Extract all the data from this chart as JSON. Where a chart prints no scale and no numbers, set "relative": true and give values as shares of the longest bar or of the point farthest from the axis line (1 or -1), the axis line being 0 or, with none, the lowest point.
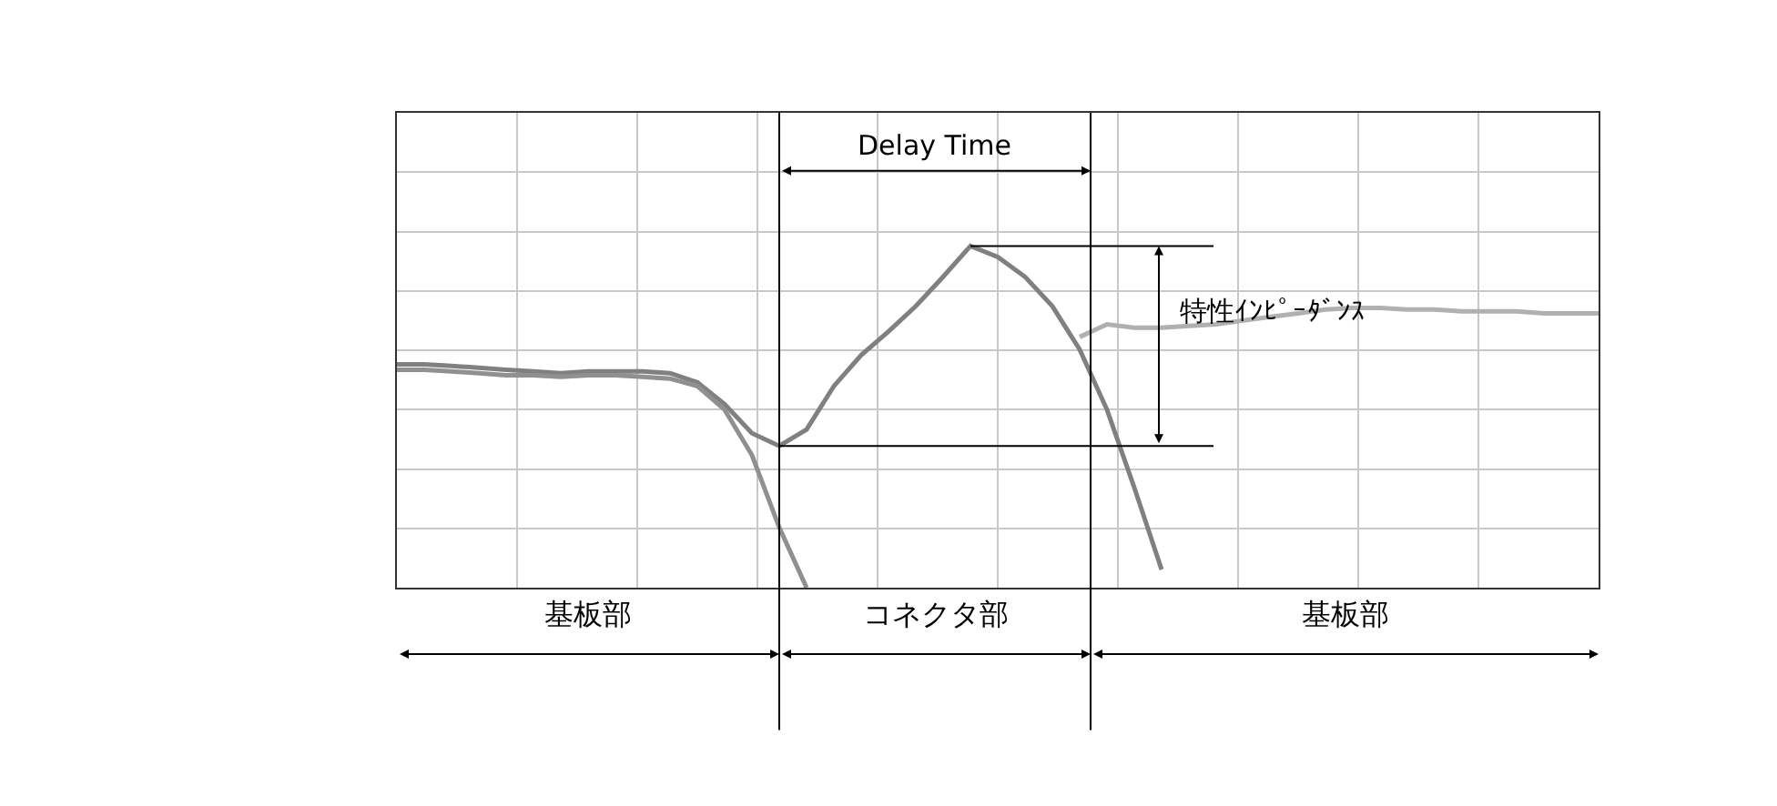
{
  "chart_data": {
    "type": "line",
    "relative": true,
    "grid": true,
    "tick_labels": false,
    "line_style": "solid",
    "marker": "none",
    "categories": [
      null,
      null,
      null,
      null,
      null,
      null,
      null,
      null,
      null,
      null,
      null,
      null,
      null,
      null,
      null,
      null,
      null,
      null,
      null,
      null,
      null,
      null,
      null,
      null,
      null,
      null,
      null,
      null,
      null,
      null,
      null,
      null,
      null,
      null,
      null,
      null,
      null,
      null,
      null,
      null,
      null,
      null,
      null,
      null,
      null
    ],
    "series": [
      {
        "color": "#808080",
        "values": [
          0.654,
          0.654,
          0.649,
          0.644,
          0.638,
          0.633,
          0.628,
          0.633,
          0.633,
          0.633,
          0.628,
          0.601,
          0.537,
          0.452,
          0.415,
          0.463,
          0.59,
          0.681,
          0.75,
          0.824,
          0.91,
          1.0,
          0.968,
          0.91,
          0.824,
          0.697,
          0.521,
          0.293,
          0.053,
          null,
          null,
          null,
          null,
          null,
          null,
          null,
          null,
          null,
          null,
          null,
          null,
          null,
          null,
          null,
          null
        ]
      },
      {
        "color": "#909090",
        "values": [
          0.638,
          0.638,
          0.633,
          0.628,
          0.622,
          0.622,
          0.617,
          0.622,
          0.622,
          0.617,
          0.612,
          0.59,
          0.521,
          0.388,
          0.176,
          0,
          null,
          null,
          null,
          null,
          null,
          null,
          null,
          null,
          null,
          null,
          null,
          null,
          null,
          null,
          null,
          null,
          null,
          null,
          null,
          null,
          null,
          null,
          null,
          null,
          null,
          null,
          null,
          null,
          null
        ]
      },
      {
        "color": "#b0b0b0",
        "values": [
          null,
          null,
          null,
          null,
          null,
          null,
          null,
          null,
          null,
          null,
          null,
          null,
          null,
          null,
          null,
          null,
          null,
          null,
          null,
          null,
          null,
          null,
          null,
          null,
          null,
          0.734,
          0.771,
          0.761,
          0.761,
          0.766,
          0.771,
          0.782,
          0.793,
          0.803,
          0.814,
          0.819,
          0.819,
          0.814,
          0.814,
          0.809,
          0.809,
          0.809,
          0.803,
          0.803,
          0.803
        ]
      }
    ],
    "ref_lines": [
      {
        "axis": "y",
        "value": 1.0,
        "color": "#000000"
      },
      {
        "axis": "y",
        "value": 0.415,
        "color": "#000000"
      }
    ],
    "annotations": [
      "Delay Time",
      "特性ｲﾝﾋﾟｰﾀﾞﾝｽ",
      "基板部",
      "コネクタ部",
      "基板部"
    ]
  }
}
